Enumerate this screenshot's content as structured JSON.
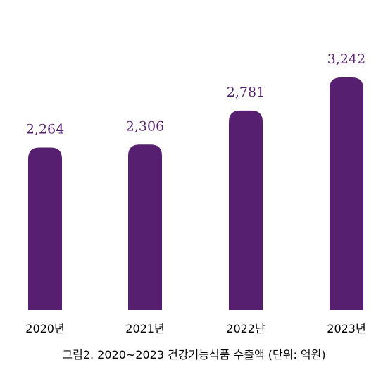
{
  "caption": "그림2. 2020~2023 건강기능식품 수출액 (단위: 억원)",
  "colors": {
    "bar": "#561f70",
    "value_label": "#561f70",
    "tick_label": "#000000"
  },
  "chart_data": {
    "type": "bar",
    "title": "",
    "xlabel": "",
    "ylabel": "",
    "categories": [
      "2020년",
      "2021년",
      "2022냔",
      "2023년"
    ],
    "values": [
      2264,
      2306,
      2781,
      3242
    ],
    "value_labels": [
      "2,264",
      "2,306",
      "2,781",
      "3,242"
    ],
    "ylim": [
      0,
      3242
    ],
    "grid": false,
    "legend": "none"
  }
}
